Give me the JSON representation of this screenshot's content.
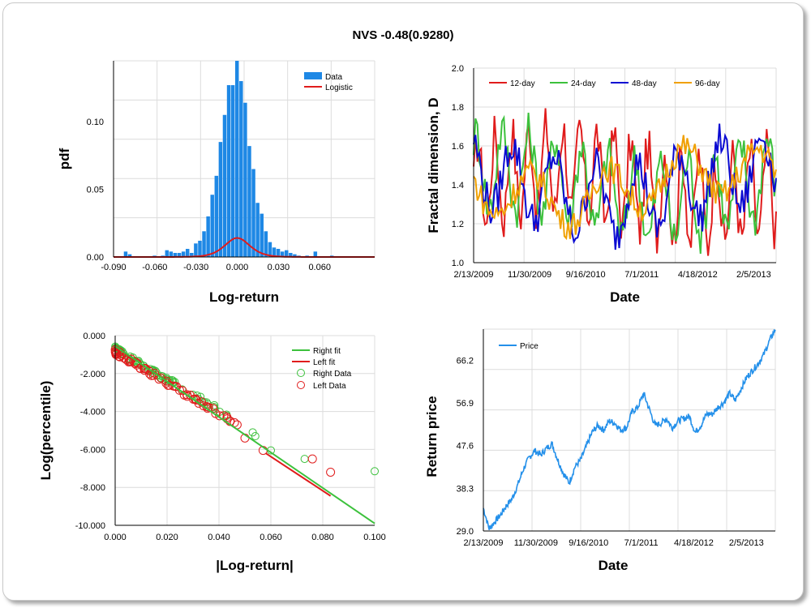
{
  "title": "NVS -0.48(0.9280)",
  "chart_data": [
    {
      "type": "bar",
      "panel": "histogram",
      "xlabel": "Log-return",
      "ylabel": "pdf",
      "xlim": [
        -0.09,
        0.1
      ],
      "ylim": [
        0,
        0.145
      ],
      "xticks": [
        "-0.090",
        "-0.060",
        "-0.030",
        "0.000",
        "0.030",
        "0.060"
      ],
      "yticks": [
        "0.00",
        "0.05",
        "0.10"
      ],
      "legend": [
        "Data",
        "Logistic"
      ],
      "legend_position": "top-right",
      "colors": {
        "data": "#1e88e5",
        "fit": "#e01c1c"
      },
      "bins": {
        "width": 0.003,
        "centers": [
          -0.081,
          -0.078,
          -0.06,
          -0.054,
          -0.051,
          -0.048,
          -0.045,
          -0.042,
          -0.039,
          -0.036,
          -0.033,
          -0.03,
          -0.027,
          -0.024,
          -0.021,
          -0.018,
          -0.015,
          -0.012,
          -0.009,
          -0.006,
          -0.003,
          0.0,
          0.003,
          0.006,
          0.009,
          0.012,
          0.015,
          0.018,
          0.021,
          0.024,
          0.027,
          0.03,
          0.033,
          0.036,
          0.039,
          0.042,
          0.045,
          0.051,
          0.057,
          0.069
        ],
        "values": [
          0.004,
          0.002,
          0.001,
          0.001,
          0.005,
          0.004,
          0.003,
          0.003,
          0.004,
          0.006,
          0.003,
          0.01,
          0.012,
          0.019,
          0.03,
          0.046,
          0.06,
          0.085,
          0.105,
          0.127,
          0.127,
          0.148,
          0.13,
          0.114,
          0.082,
          0.065,
          0.04,
          0.032,
          0.019,
          0.011,
          0.007,
          0.006,
          0.004,
          0.005,
          0.003,
          0.002,
          0.001,
          0.001,
          0.004,
          0.001
        ]
      },
      "fit": {
        "mu": 0.0,
        "s": 0.0061
      }
    },
    {
      "type": "line",
      "panel": "fractal-dimension",
      "xlabel": "Date",
      "ylabel": "Fractal dimension, D",
      "ylim": [
        1.0,
        2.0
      ],
      "xticks": [
        "2/13/2009",
        "11/30/2009",
        "9/16/2010",
        "7/1/2011",
        "4/18/2012",
        "2/5/2013"
      ],
      "yticks": [
        "1.0",
        "1.2",
        "1.4",
        "1.6",
        "1.8",
        "2.0"
      ],
      "legend_position": "top",
      "series": [
        {
          "name": "12-day",
          "color": "#e01c1c"
        },
        {
          "name": "24-day",
          "color": "#3cc13c"
        },
        {
          "name": "48-day",
          "color": "#0a0ad2"
        },
        {
          "name": "96-day",
          "color": "#f0a000"
        }
      ]
    },
    {
      "type": "scatter",
      "panel": "tail",
      "xlabel": "|Log-return|",
      "ylabel": "Log(percentile)",
      "xlim": [
        0,
        0.1
      ],
      "ylim": [
        -10,
        0
      ],
      "xticks": [
        "0.000",
        "0.020",
        "0.040",
        "0.060",
        "0.080",
        "0.100"
      ],
      "yticks": [
        "0.000",
        "-2.000",
        "-4.000",
        "-6.000",
        "-8.000",
        "-10.000"
      ],
      "legend": [
        "Right fit",
        "Left fit",
        "Right Data",
        "Left Data"
      ],
      "legend_position": "top-right",
      "right_fit": {
        "x": [
          0.0,
          0.1
        ],
        "y": [
          -0.55,
          -9.9
        ],
        "color": "#3cc13c"
      },
      "left_fit": {
        "x": [
          0.058,
          0.083
        ],
        "y": [
          -6.2,
          -8.45
        ],
        "color": "#e01c1c"
      },
      "right_outliers": {
        "x": [
          0.053,
          0.054,
          0.06,
          0.073,
          0.1
        ],
        "y": [
          -5.1,
          -5.3,
          -6.05,
          -6.5,
          -7.15
        ]
      },
      "left_outliers": {
        "x": [
          0.047,
          0.05,
          0.057,
          0.076,
          0.083
        ],
        "y": [
          -4.7,
          -5.4,
          -6.05,
          -6.5,
          -7.2
        ]
      }
    },
    {
      "type": "line",
      "panel": "price",
      "xlabel": "Date",
      "ylabel": "Return price",
      "ylim": [
        29.0,
        73.0
      ],
      "xticks": [
        "2/13/2009",
        "11/30/2009",
        "9/16/2010",
        "7/1/2011",
        "4/18/2012",
        "2/5/2013"
      ],
      "yticks": [
        "29.0",
        "38.3",
        "47.6",
        "56.9",
        "66.2"
      ],
      "legend_position": "top-left",
      "series": [
        {
          "name": "Price",
          "color": "#2490ea",
          "x": [
            0.0,
            0.01,
            0.02,
            0.04,
            0.06,
            0.08,
            0.1,
            0.12,
            0.14,
            0.16,
            0.18,
            0.2,
            0.22,
            0.24,
            0.26,
            0.28,
            0.3,
            0.32,
            0.34,
            0.36,
            0.38,
            0.4,
            0.42,
            0.44,
            0.46,
            0.48,
            0.5,
            0.52,
            0.54,
            0.56,
            0.58,
            0.6,
            0.62,
            0.64,
            0.66,
            0.68,
            0.7,
            0.72,
            0.74,
            0.76,
            0.78,
            0.8,
            0.82,
            0.84,
            0.86,
            0.88,
            0.9,
            0.92,
            0.94,
            0.96,
            0.98,
            1.0
          ],
          "y": [
            34,
            29.5,
            31,
            32.5,
            34.5,
            36,
            39,
            42.5,
            45,
            46.5,
            45.5,
            47,
            48,
            44.5,
            41.5,
            39.5,
            43,
            44.5,
            47.5,
            50.5,
            52,
            51,
            53,
            52.5,
            51,
            51.5,
            55,
            56,
            59,
            55.5,
            52,
            52.5,
            53.5,
            51.5,
            53,
            53.5,
            54,
            50.5,
            52,
            54.5,
            54.5,
            56,
            57,
            59,
            57.5,
            60,
            62.5,
            64,
            65.5,
            67.5,
            70.5,
            73
          ]
        }
      ]
    }
  ]
}
